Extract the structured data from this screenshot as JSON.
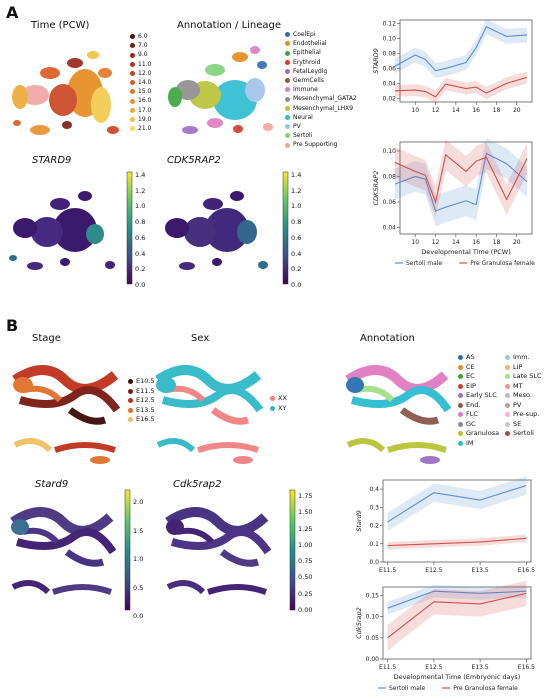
{
  "panelA": {
    "letter": "A",
    "umap_titles": {
      "time": "Time (PCW)",
      "annotation": "Annotation / Lineage",
      "gene1": "STARD9",
      "gene2": "CDK5RAP2"
    },
    "time_legend": [
      "6.0",
      "7.0",
      "9.0",
      "11.0",
      "12.0",
      "14.0",
      "15.0",
      "16.0",
      "17.0",
      "19.0",
      "21.0"
    ],
    "time_colors": [
      "#5a0f0f",
      "#7a1a12",
      "#9a2416",
      "#b4321a",
      "#c9431e",
      "#d85a22",
      "#e37426",
      "#ea8f2c",
      "#eea934",
      "#f0c13e",
      "#f3d96a"
    ],
    "annotation_legend": [
      {
        "label": "CoelEpi",
        "color": "#2b6fb0"
      },
      {
        "label": "Endothelial",
        "color": "#e58a1c"
      },
      {
        "label": "Epithelial",
        "color": "#3aa43a"
      },
      {
        "label": "Erythroid",
        "color": "#d23a2a"
      },
      {
        "label": "FetalLeydig",
        "color": "#9a6fc4"
      },
      {
        "label": "GermCells",
        "color": "#8a5a44"
      },
      {
        "label": "Immune",
        "color": "#e07ac0"
      },
      {
        "label": "Mesenchymal_GATA2",
        "color": "#8c8c8c"
      },
      {
        "label": "Mesenchymal_LHX9",
        "color": "#b8c234"
      },
      {
        "label": "Neural",
        "color": "#2bbccf"
      },
      {
        "label": "PV",
        "color": "#9fc2e8"
      },
      {
        "label": "Sertoli",
        "color": "#7fd27a"
      },
      {
        "label": "Pre Supporting",
        "color": "#f0a3a3"
      }
    ],
    "colorbar_ticks": [
      "1.4",
      "1.2",
      "1.0",
      "0.8",
      "0.6",
      "0.4",
      "0.2",
      "0.0"
    ]
  },
  "panelB": {
    "letter": "B",
    "umap_titles": {
      "stage": "Stage",
      "sex": "Sex",
      "annotation": "Annotation",
      "gene1": "Stard9",
      "gene2": "Cdk5rap2"
    },
    "stage_legend": [
      {
        "label": "E10.5",
        "color": "#3b0a0a"
      },
      {
        "label": "E11.5",
        "color": "#7a1a12"
      },
      {
        "label": "E12.5",
        "color": "#c0301c"
      },
      {
        "label": "E13.5",
        "color": "#e0702a"
      },
      {
        "label": "E16.5",
        "color": "#f0c060"
      }
    ],
    "sex_legend": [
      {
        "label": "XX",
        "color": "#f08080"
      },
      {
        "label": "XY",
        "color": "#30b8c8"
      }
    ],
    "annotation_legend_col1": [
      {
        "label": "AS",
        "color": "#2b6fb0"
      },
      {
        "label": "CE",
        "color": "#e58a1c"
      },
      {
        "label": "EC",
        "color": "#3aa43a"
      },
      {
        "label": "EIP",
        "color": "#d23a2a"
      },
      {
        "label": "Early SLC",
        "color": "#9a6fc4"
      },
      {
        "label": "End.",
        "color": "#8a5a44"
      },
      {
        "label": "FLC",
        "color": "#e07ac0"
      },
      {
        "label": "GC",
        "color": "#8c8c8c"
      },
      {
        "label": "Granulosa",
        "color": "#b8c234"
      },
      {
        "label": "IM",
        "color": "#2bbccf"
      }
    ],
    "annotation_legend_col2": [
      {
        "label": "Imm.",
        "color": "#9fc2e8"
      },
      {
        "label": "LIP",
        "color": "#f5b26b"
      },
      {
        "label": "Late SLC",
        "color": "#9fe08a"
      },
      {
        "label": "MT",
        "color": "#f08f8f"
      },
      {
        "label": "Meso.",
        "color": "#c5b0dd"
      },
      {
        "label": "PV",
        "color": "#c49c94"
      },
      {
        "label": "Pre-sup.",
        "color": "#f2b6d2"
      },
      {
        "label": "SE",
        "color": "#c7c7c7"
      },
      {
        "label": "Sertoli",
        "color": "#8c564b"
      }
    ],
    "colorbar1_ticks": [
      "2.0",
      "1.5",
      "1.0",
      "0.5",
      "0.0"
    ],
    "colorbar2_ticks": [
      "1.75",
      "1.50",
      "1.25",
      "1.00",
      "0.75",
      "0.50",
      "0.25",
      "0.00"
    ]
  },
  "chart_data": [
    {
      "type": "line",
      "ylabel": "STARD9",
      "xlabel": "",
      "xlim": [
        8.5,
        21.5
      ],
      "ylim": [
        0.015,
        0.125
      ],
      "xticks": [
        "10",
        "12",
        "14",
        "16",
        "18",
        "20"
      ],
      "yticks": [
        "0.02",
        "0.04",
        "0.06",
        "0.08",
        "0.10",
        "0.12"
      ],
      "x": [
        8,
        10,
        11,
        12,
        13,
        15,
        16,
        17,
        19,
        21
      ],
      "series": [
        {
          "name": "Sertoli male",
          "color": "#5b8fd4",
          "values": [
            0.063,
            0.078,
            0.072,
            0.057,
            0.06,
            0.068,
            0.088,
            0.116,
            0.103,
            0.105
          ],
          "band": 0.01
        },
        {
          "name": "Pre Granulosa female",
          "color": "#d0504a",
          "values": [
            0.03,
            0.031,
            0.029,
            0.022,
            0.039,
            0.033,
            0.035,
            0.027,
            0.04,
            0.048
          ],
          "band": 0.008
        }
      ]
    },
    {
      "type": "line",
      "ylabel": "CDK5RAP2",
      "xlabel": "Developmental Time (PCW)",
      "xlim": [
        8.5,
        21.5
      ],
      "ylim": [
        0.035,
        0.107
      ],
      "xticks": [
        "10",
        "12",
        "14",
        "16",
        "18",
        "20"
      ],
      "yticks": [
        "0.04",
        "0.06",
        "0.08",
        "0.10"
      ],
      "x": [
        8,
        10,
        11,
        12,
        13,
        15,
        16,
        17,
        19,
        21
      ],
      "series": [
        {
          "name": "Sertoli male",
          "color": "#5b8fd4",
          "values": [
            0.074,
            0.08,
            0.078,
            0.053,
            0.056,
            0.061,
            0.058,
            0.098,
            0.09,
            0.076
          ],
          "band": 0.012
        },
        {
          "name": "Pre Granulosa female",
          "color": "#d0504a",
          "values": [
            0.091,
            0.084,
            0.081,
            0.06,
            0.097,
            0.084,
            0.092,
            0.095,
            0.062,
            0.094
          ],
          "band": 0.012
        }
      ],
      "legend": [
        "Sertoli male",
        "Pre Granulosa female"
      ]
    },
    {
      "type": "line",
      "ylabel": "Stard9",
      "xlabel": "",
      "categories": [
        "E11.5",
        "E12.5",
        "E13.5",
        "E16.5"
      ],
      "ylim": [
        0.0,
        0.45
      ],
      "yticks": [
        "0.0",
        "0.1",
        "0.2",
        "0.3",
        "0.4"
      ],
      "series": [
        {
          "name": "Sertoli male",
          "color": "#5b8fd4",
          "values": [
            0.22,
            0.38,
            0.34,
            0.42
          ],
          "band": 0.05
        },
        {
          "name": "Pre Granulosa female",
          "color": "#d0504a",
          "values": [
            0.09,
            0.1,
            0.11,
            0.13
          ],
          "band": 0.02
        }
      ]
    },
    {
      "type": "line",
      "ylabel": "Cdk5rap2",
      "xlabel": "Developmental Time (Embryonic days)",
      "categories": [
        "E11.5",
        "E12.5",
        "E13.5",
        "E16.5"
      ],
      "ylim": [
        0.0,
        0.17
      ],
      "yticks": [
        "0.00",
        "0.05",
        "0.10",
        "0.15"
      ],
      "series": [
        {
          "name": "Sertoli male",
          "color": "#5b8fd4",
          "values": [
            0.12,
            0.16,
            0.155,
            0.16
          ],
          "band": 0.015
        },
        {
          "name": "Pre Granulosa female",
          "color": "#d0504a",
          "values": [
            0.05,
            0.135,
            0.13,
            0.155
          ],
          "band": 0.03
        }
      ],
      "legend": [
        "Sertoli male",
        "Pre Granulosa female"
      ]
    }
  ]
}
